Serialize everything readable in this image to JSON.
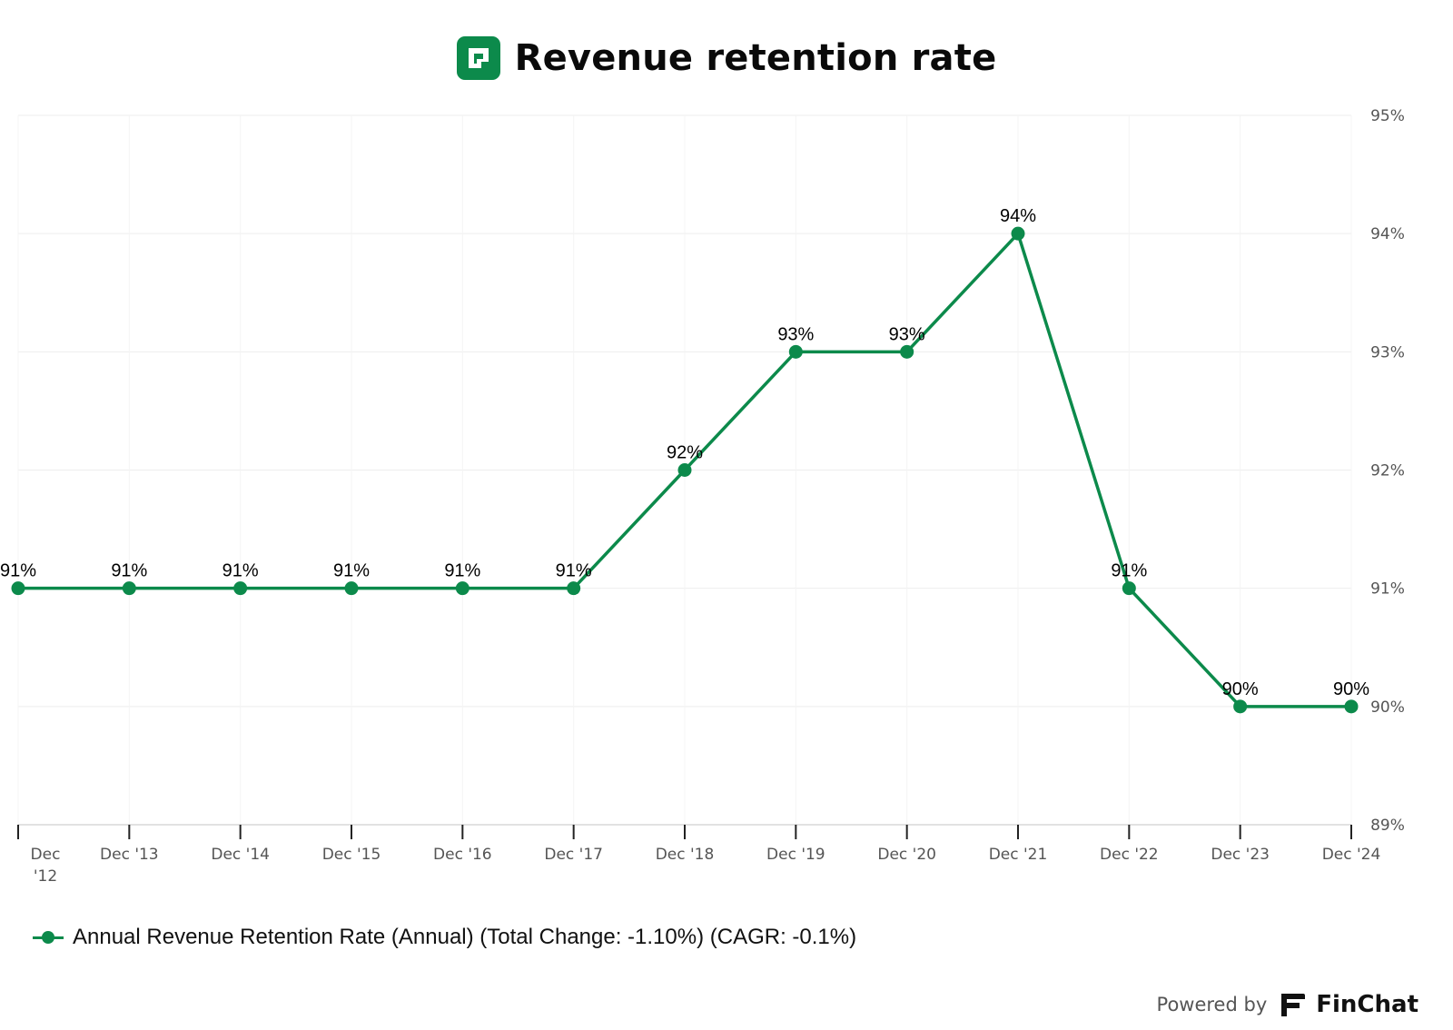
{
  "header": {
    "title": "Revenue retention rate",
    "logo_icon": "company-logo-icon"
  },
  "colors": {
    "series": "#0c8a4b",
    "grid": "#eeeeee",
    "axis": "#d9d9d9",
    "tick_text": "#555555",
    "label_text": "#000000"
  },
  "chart_data": {
    "type": "line",
    "title": "Revenue retention rate",
    "categories": [
      "Dec '12",
      "Dec '13",
      "Dec '14",
      "Dec '15",
      "Dec '16",
      "Dec '17",
      "Dec '18",
      "Dec '19",
      "Dec '20",
      "Dec '21",
      "Dec '22",
      "Dec '23",
      "Dec '24"
    ],
    "series": [
      {
        "name": "Annual Revenue Retention Rate (Annual) (Total Change: -1.10%) (CAGR: -0.1%)",
        "values": [
          91,
          91,
          91,
          91,
          91,
          91,
          92,
          93,
          93,
          94,
          91,
          90,
          90
        ],
        "data_labels": [
          "91%",
          "91%",
          "91%",
          "91%",
          "91%",
          "91%",
          "92%",
          "93%",
          "93%",
          "94%",
          "91%",
          "90%",
          "90%"
        ]
      }
    ],
    "y_axis": {
      "position": "right",
      "ylim": [
        89,
        95
      ],
      "ticks": [
        89,
        90,
        91,
        92,
        93,
        94,
        95
      ],
      "tick_labels": [
        "89%",
        "90%",
        "91%",
        "92%",
        "93%",
        "94%",
        "95%"
      ]
    },
    "x_tick_labels": [
      [
        "Dec",
        "'12"
      ],
      [
        "Dec '13"
      ],
      [
        "Dec '14"
      ],
      [
        "Dec '15"
      ],
      [
        "Dec '16"
      ],
      [
        "Dec '17"
      ],
      [
        "Dec '18"
      ],
      [
        "Dec '19"
      ],
      [
        "Dec '20"
      ],
      [
        "Dec '21"
      ],
      [
        "Dec '22"
      ],
      [
        "Dec '23"
      ],
      [
        "Dec '24"
      ]
    ],
    "grid": true,
    "legend": "bottom-left"
  },
  "legend": {
    "label": "Annual Revenue Retention Rate (Annual) (Total Change: -1.10%) (CAGR: -0.1%)"
  },
  "footer": {
    "powered_by": "Powered by",
    "brand": "FinChat",
    "brand_icon": "finchat-logo-icon"
  }
}
